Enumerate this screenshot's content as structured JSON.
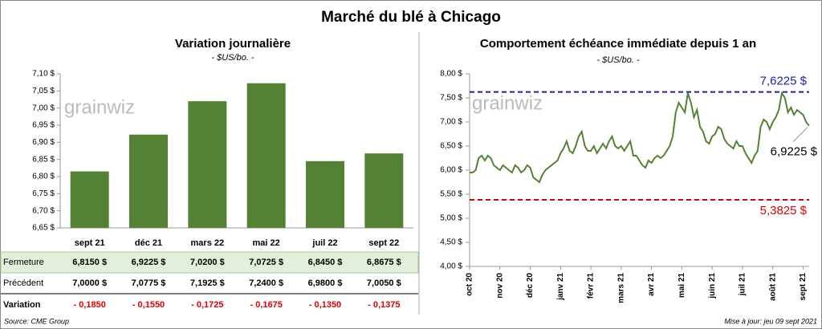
{
  "title": "Marché du blé à Chicago",
  "chart_data": [
    {
      "type": "bar",
      "title": "Variation journalière",
      "subtitle": "- $US/bo. -",
      "watermark": "grainwiz",
      "categories": [
        "sept 21",
        "déc 21",
        "mars 22",
        "mai 22",
        "juil 22",
        "sept 22"
      ],
      "values": [
        6.815,
        6.9225,
        7.02,
        7.0725,
        6.845,
        6.8675
      ],
      "value_labels": [
        "6,8150  $",
        "6,9225  $",
        "7,0200  $",
        "7,0725  $",
        "6,8450  $",
        "6,8675  $"
      ],
      "color": "#548235",
      "grid": false,
      "ylim": [
        6.65,
        7.1
      ],
      "yticks": [
        {
          "value": 6.65,
          "label": "6,65 $"
        },
        {
          "value": 6.7,
          "label": "6,70 $"
        },
        {
          "value": 6.75,
          "label": "6,75 $"
        },
        {
          "value": 6.8,
          "label": "6,80 $"
        },
        {
          "value": 6.85,
          "label": "6,85 $"
        },
        {
          "value": 6.9,
          "label": "6,90 $"
        },
        {
          "value": 6.95,
          "label": "6,95 $"
        },
        {
          "value": 7.0,
          "label": "7,00 $"
        },
        {
          "value": 7.05,
          "label": "7,05 $"
        },
        {
          "value": 7.1,
          "label": "7,10 $"
        }
      ]
    },
    {
      "type": "line",
      "title": "Comportement  échéance immédiate depuis 1 an",
      "subtitle": "- $US/bo. -",
      "watermark": "grainwiz",
      "color": "#548235",
      "values": [
        5.95,
        5.95,
        6.0,
        6.25,
        6.3,
        6.2,
        6.3,
        6.25,
        6.1,
        6.05,
        6.0,
        6.1,
        6.05,
        6.0,
        5.95,
        6.1,
        6.05,
        5.95,
        6.0,
        6.1,
        6.05,
        5.85,
        5.8,
        5.75,
        5.9,
        6.0,
        6.05,
        6.1,
        6.15,
        6.2,
        6.35,
        6.45,
        6.6,
        6.4,
        6.35,
        6.5,
        6.7,
        6.8,
        6.5,
        6.4,
        6.4,
        6.5,
        6.35,
        6.45,
        6.55,
        6.45,
        6.6,
        6.7,
        6.5,
        6.45,
        6.5,
        6.4,
        6.5,
        6.6,
        6.3,
        6.3,
        6.2,
        6.1,
        6.05,
        6.2,
        6.15,
        6.25,
        6.3,
        6.25,
        6.3,
        6.4,
        6.5,
        6.7,
        7.2,
        7.4,
        7.3,
        7.2,
        7.6,
        7.4,
        7.1,
        7.25,
        6.9,
        6.8,
        6.6,
        6.55,
        6.7,
        6.75,
        6.9,
        6.85,
        6.65,
        6.55,
        6.5,
        6.45,
        6.6,
        6.5,
        6.5,
        6.35,
        6.25,
        6.15,
        6.3,
        6.4,
        6.9,
        7.05,
        7.0,
        6.85,
        7.0,
        7.1,
        7.25,
        7.6,
        7.5,
        7.2,
        7.3,
        7.15,
        7.25,
        7.2,
        7.15,
        7.0,
        6.9225
      ],
      "xlim": [
        0,
        112
      ],
      "xticks": [
        {
          "value": 0,
          "label": "oct 20"
        },
        {
          "value": 10,
          "label": "nov 20"
        },
        {
          "value": 20,
          "label": "déc 20"
        },
        {
          "value": 30,
          "label": "janv 21"
        },
        {
          "value": 40,
          "label": "févr 21"
        },
        {
          "value": 50,
          "label": "mars 21"
        },
        {
          "value": 60,
          "label": "avr 21"
        },
        {
          "value": 70,
          "label": "mai 21"
        },
        {
          "value": 80,
          "label": "juin 21"
        },
        {
          "value": 90,
          "label": "juil 21"
        },
        {
          "value": 100,
          "label": "août 21"
        },
        {
          "value": 110,
          "label": "sept 21"
        }
      ],
      "ylim": [
        4.0,
        8.0
      ],
      "yticks": [
        {
          "value": 4.0,
          "label": "4,00 $"
        },
        {
          "value": 4.5,
          "label": "4,50 $"
        },
        {
          "value": 5.0,
          "label": "5,00 $"
        },
        {
          "value": 5.5,
          "label": "5,50 $"
        },
        {
          "value": 6.0,
          "label": "6,00 $"
        },
        {
          "value": 6.5,
          "label": "6,50 $"
        },
        {
          "value": 7.0,
          "label": "7,00 $"
        },
        {
          "value": 7.5,
          "label": "7,50 $"
        },
        {
          "value": 8.0,
          "label": "8,00 $"
        }
      ],
      "reference_lines": [
        {
          "value": 7.6225,
          "label": "7,6225  $",
          "color": "#1f1fa8"
        },
        {
          "value": 5.3825,
          "label": "5,3825  $",
          "color": "#e00000"
        }
      ],
      "annotation": {
        "value": 6.9225,
        "label": "6,9225 $"
      }
    }
  ],
  "table": {
    "rows": [
      {
        "label": "Fermeture"
      },
      {
        "label": "Précédent",
        "cells": [
          "7,0000  $",
          "7,0775  $",
          "7,1925  $",
          "7,2400  $",
          "6,9800  $",
          "7,0050  $"
        ]
      },
      {
        "label": "Variation",
        "cells": [
          "- 0,1850",
          "- 0,1550",
          "- 0,1725",
          "- 0,1675",
          "- 0,1350",
          "- 0,1375"
        ]
      }
    ]
  },
  "source": "Source: CME Group",
  "updated": "Mise à jour: jeu 09 sept 2021"
}
